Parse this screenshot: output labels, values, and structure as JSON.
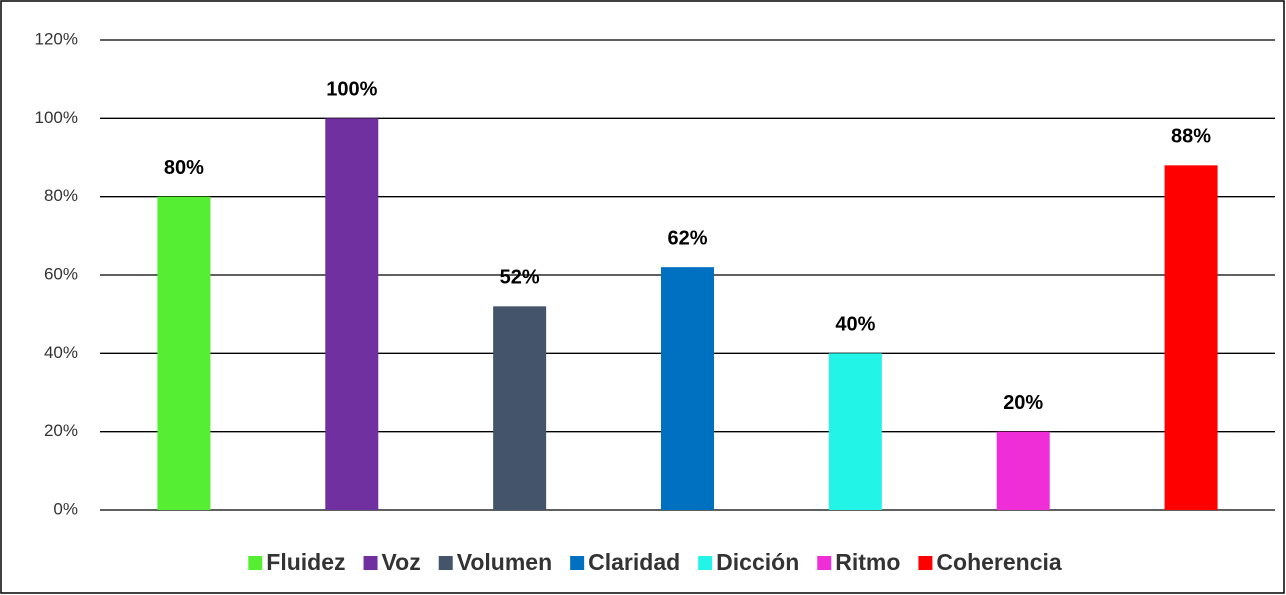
{
  "chart_data": {
    "type": "bar",
    "categories": [
      "Fluidez",
      "Voz",
      "Volumen",
      "Claridad",
      "Dicción",
      "Ritmo",
      "Coherencia"
    ],
    "values": [
      80,
      100,
      52,
      62,
      40,
      20,
      88
    ],
    "value_labels": [
      "80%",
      "100%",
      "52%",
      "62%",
      "40%",
      "20%",
      "88%"
    ],
    "colors": [
      "#55ee33",
      "#7030a0",
      "#44546a",
      "#0070c0",
      "#22f5e8",
      "#f02ed8",
      "#ff0000"
    ],
    "ylim": [
      0,
      120
    ],
    "yticks": [
      {
        "value": 0,
        "label": "0%"
      },
      {
        "value": 20,
        "label": "20%"
      },
      {
        "value": 40,
        "label": "40%"
      },
      {
        "value": 60,
        "label": "60%"
      },
      {
        "value": 80,
        "label": "80%"
      },
      {
        "value": 100,
        "label": "100%"
      },
      {
        "value": 120,
        "label": "120%"
      }
    ],
    "grid": true,
    "legend": "bottom"
  }
}
